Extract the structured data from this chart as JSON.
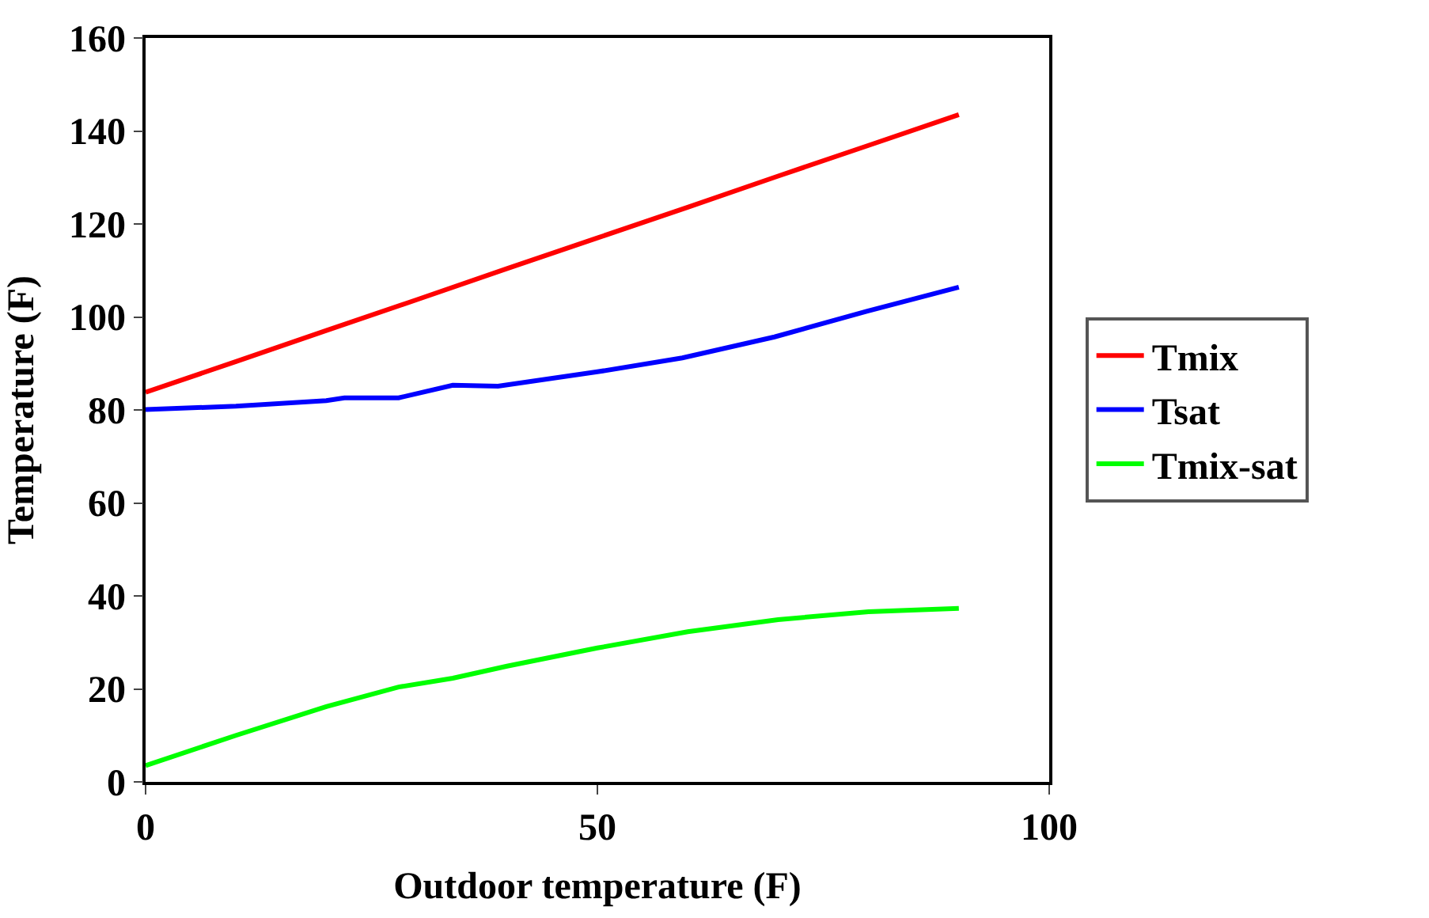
{
  "chart_data": {
    "type": "line",
    "xlabel": "Outdoor temperature (F)",
    "ylabel": "Temperature (F)",
    "xlim": [
      0,
      100
    ],
    "xticks": [
      0,
      50,
      100
    ],
    "ylim": [
      0,
      160
    ],
    "yticks": [
      0,
      20,
      40,
      60,
      80,
      100,
      120,
      140,
      160
    ],
    "legend": "right",
    "marker": "none",
    "line_style": "solid",
    "series": [
      {
        "name": "Tmix",
        "color": "#ff0000",
        "x": [
          0,
          10,
          20,
          30,
          40,
          50,
          60,
          70,
          80,
          90
        ],
        "values": [
          83.8,
          90.4,
          97.1,
          103.7,
          110.4,
          117,
          123.6,
          130.3,
          136.9,
          143.5
        ]
      },
      {
        "name": "Tsat",
        "color": "#0000ff",
        "x": [
          0,
          10,
          20,
          22,
          28,
          34,
          39,
          50,
          59.4,
          69.6,
          79.8,
          90
        ],
        "values": [
          80.1,
          80.8,
          82,
          82.6,
          82.6,
          85.3,
          85.1,
          88.2,
          91.2,
          95.7,
          101.2,
          106.4
        ]
      },
      {
        "name": "Tmix-sat",
        "color": "#00ff00",
        "x": [
          0,
          10,
          20,
          28,
          34,
          40,
          50,
          60,
          70,
          80,
          90
        ],
        "values": [
          3.5,
          10,
          16.2,
          20.4,
          22.3,
          24.9,
          28.8,
          32.3,
          34.9,
          36.6,
          37.3
        ]
      }
    ]
  }
}
